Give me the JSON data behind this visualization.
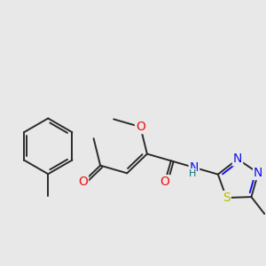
{
  "bg_color": "#e8e8e8",
  "bond_color": "#2a2a2a",
  "bond_lw": 1.4,
  "atom_colors": {
    "O": "#ee1111",
    "N": "#1111ee",
    "S": "#bbbb00",
    "H": "#007777",
    "C": "#2a2a2a"
  },
  "font_size": 8.5
}
